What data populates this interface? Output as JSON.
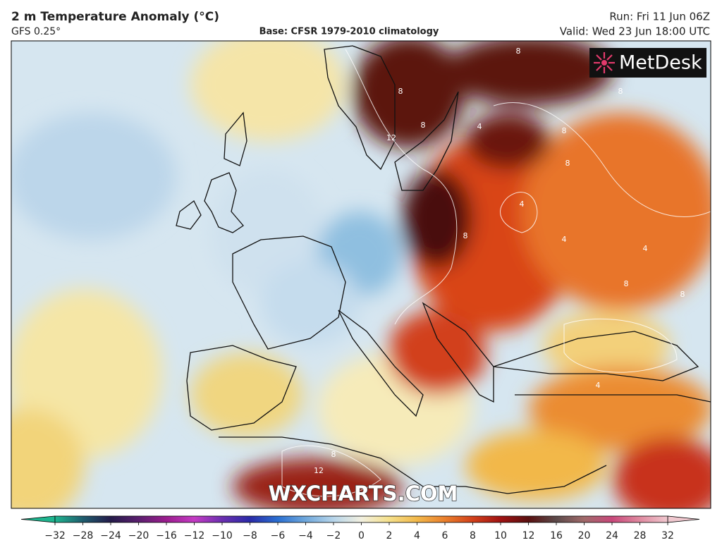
{
  "header": {
    "title": "2 m Temperature Anomaly (°C)",
    "model": "GFS 0.25°",
    "base": "Base: CFSR 1979-2010 climatology",
    "run": "Run: Fri 11 Jun 06Z",
    "valid": "Valid: Wed 23 Jun 18:00 UTC"
  },
  "logo": "MetDesk",
  "watermark": "WXCHARTS.COM",
  "contour_labels": [
    8,
    8,
    12,
    8,
    4,
    8,
    8,
    8,
    4,
    4,
    8,
    8,
    4,
    4,
    12,
    8,
    8
  ],
  "colorbar": {
    "ticks": [
      {
        "value": -32,
        "label": "−32"
      },
      {
        "value": -28,
        "label": "−28"
      },
      {
        "value": -24,
        "label": "−24"
      },
      {
        "value": -20,
        "label": "−20"
      },
      {
        "value": -16,
        "label": "−16"
      },
      {
        "value": -12,
        "label": "−12"
      },
      {
        "value": -10,
        "label": "−10"
      },
      {
        "value": -8,
        "label": "−8"
      },
      {
        "value": -6,
        "label": "−6"
      },
      {
        "value": -4,
        "label": "−4"
      },
      {
        "value": -2,
        "label": "−2"
      },
      0,
      2,
      4,
      6,
      8,
      10,
      12,
      16,
      20,
      24,
      28,
      32
    ],
    "colors": [
      "#1fb58f",
      "#1f5d6e",
      "#241b4a",
      "#5a1e6e",
      "#9b1d8e",
      "#c43bc4",
      "#6b2fb0",
      "#2a2aa8",
      "#2a6fd1",
      "#6fa8dc",
      "#b7d5ea",
      "#f2f0e0",
      "#f5e08a",
      "#f2b84a",
      "#ea7f2c",
      "#d2401a",
      "#a01212",
      "#5a1010",
      "#5c4a4a",
      "#a06a6a",
      "#c8487a",
      "#e08aa0",
      "#f0c8cf"
    ]
  }
}
